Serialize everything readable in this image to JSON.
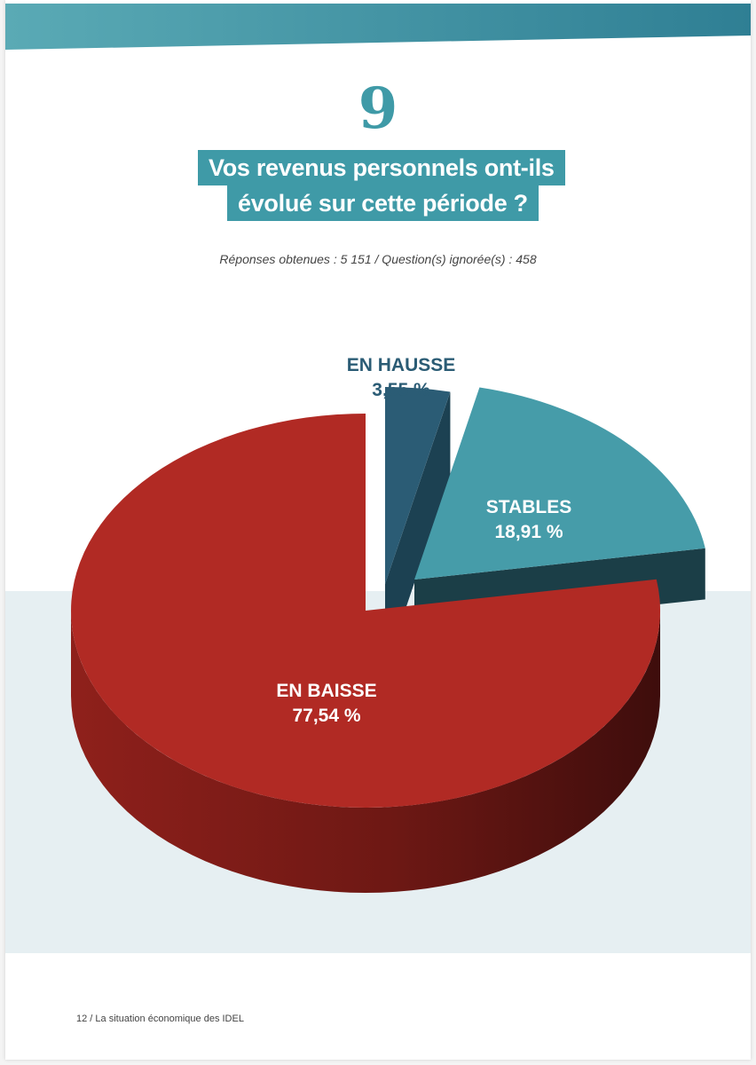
{
  "question": {
    "number": "9",
    "title_line1": "Vos revenus personnels ont-ils",
    "title_line2": "évolué sur cette période ?",
    "stats": "Réponses obtenues : 5 151 / Question(s) ignorée(s) : 458"
  },
  "chart_data": {
    "type": "pie",
    "slices": [
      {
        "label": "EN HAUSSE",
        "value": 3.55,
        "display": "3,55 %",
        "color": "#2b5c75"
      },
      {
        "label": "STABLES",
        "value": 18.91,
        "display": "18,91 %",
        "color": "#469ca9"
      },
      {
        "label": "EN BAISSE",
        "value": 77.54,
        "display": "77,54 %",
        "color": "#b12a24"
      }
    ]
  },
  "colors": {
    "accent": "#3f9aa7",
    "band_light": "#e6eff2"
  },
  "footer": {
    "text": "12 / La situation économique des IDEL"
  }
}
